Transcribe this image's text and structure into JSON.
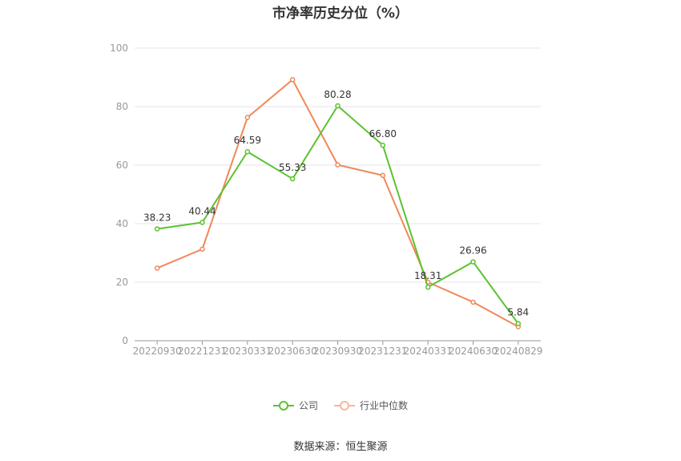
{
  "chart_data": {
    "type": "line",
    "title": "市净率历史分位（%）",
    "xlabel": "",
    "ylabel": "",
    "categories": [
      "20220930",
      "20221231",
      "20230331",
      "20230630",
      "20230930",
      "20231231",
      "20240331",
      "20240630",
      "20240829"
    ],
    "ylim": [
      0,
      100
    ],
    "yticks": [
      0,
      20,
      40,
      60,
      80,
      100
    ],
    "grid": true,
    "legend_position": "bottom",
    "series": [
      {
        "name": "公司",
        "color": "#5cc22f",
        "values": [
          38.23,
          40.44,
          64.59,
          55.33,
          80.28,
          66.8,
          18.31,
          26.96,
          5.84
        ],
        "labels": [
          "38.23",
          "40.44",
          "64.59",
          "55.33",
          "80.28",
          "66.80",
          "18.31",
          "26.96",
          "5.84"
        ]
      },
      {
        "name": "行业中位数",
        "color": "#f0885a",
        "values": [
          24.8,
          31.3,
          76.3,
          89.2,
          60.1,
          56.5,
          20.0,
          13.2,
          4.8
        ]
      }
    ]
  },
  "source": "数据来源：恒生聚源"
}
